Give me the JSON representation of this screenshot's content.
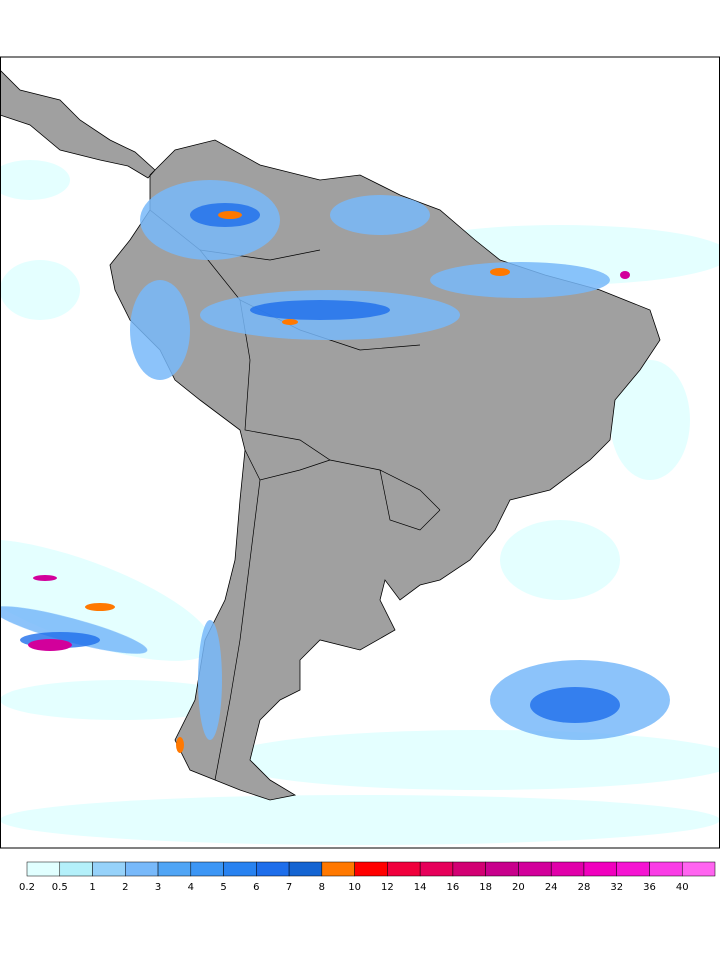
{
  "colorbar": {
    "ticks": [
      0.2,
      0.5,
      1,
      2,
      3,
      4,
      5,
      6,
      7,
      8,
      10,
      12,
      14,
      16,
      18,
      20,
      24,
      28,
      32,
      36,
      40
    ],
    "colors": [
      "#e1ffff",
      "#b4f0fa",
      "#96d2fa",
      "#78b9fa",
      "#50a5f5",
      "#3c96f5",
      "#2882f0",
      "#1e6eeb",
      "#1464d2",
      "#ff7800",
      "#ff0000",
      "#f0003c",
      "#e6005a",
      "#d20073",
      "#c8008c",
      "#d2009b",
      "#e100aa",
      "#f000be",
      "#f514d2",
      "#fa3ce6",
      "#ff64f0"
    ]
  }
}
